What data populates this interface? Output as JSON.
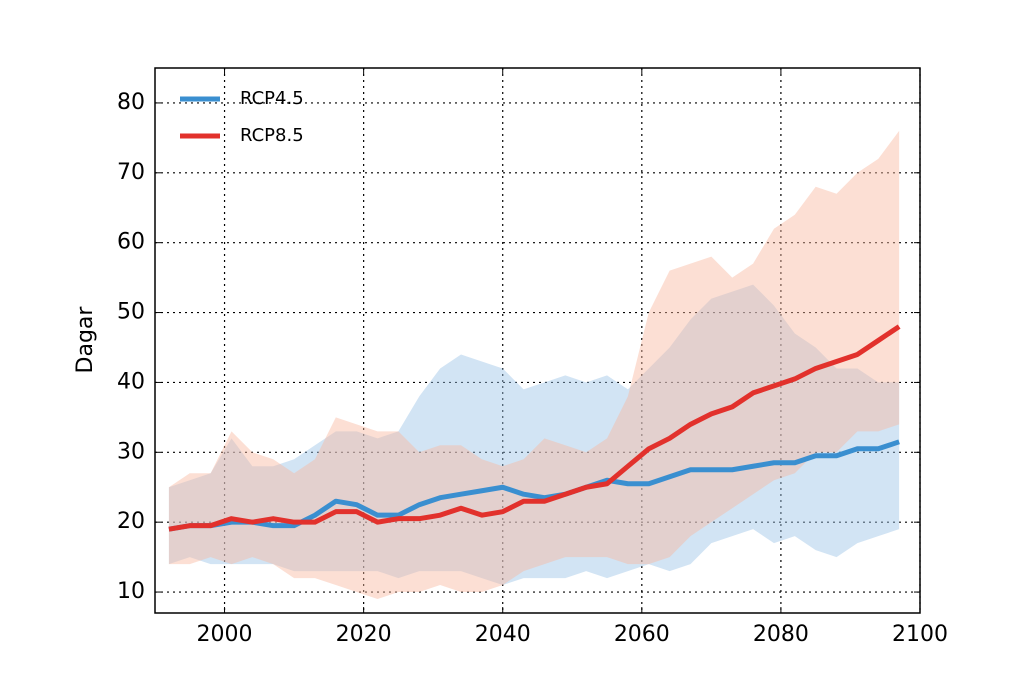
{
  "chart_data": {
    "type": "line",
    "y_label": "Dagar",
    "x": [
      1992,
      1995,
      1998,
      2001,
      2004,
      2007,
      2010,
      2013,
      2016,
      2019,
      2022,
      2025,
      2028,
      2031,
      2034,
      2037,
      2040,
      2043,
      2046,
      2049,
      2052,
      2055,
      2058,
      2061,
      2064,
      2067,
      2070,
      2073,
      2076,
      2079,
      2082,
      2085,
      2088,
      2091,
      2094,
      2097
    ],
    "series": [
      {
        "name": "RCP4.5",
        "color": "#3a8fd0",
        "band_color": "#9cc3e6",
        "values": [
          19,
          19.5,
          19.5,
          20,
          20,
          19.5,
          19.5,
          21,
          23,
          22.5,
          21,
          21,
          22.5,
          23.5,
          24,
          24.5,
          25,
          24,
          23.5,
          24,
          25,
          26,
          25.5,
          25.5,
          26.5,
          27.5,
          27.5,
          27.5,
          28,
          28.5,
          28.5,
          29.5,
          29.5,
          30.5,
          30.5,
          31.5
        ],
        "upper": [
          25,
          26,
          27,
          32,
          28,
          28,
          29,
          31,
          33,
          33,
          32,
          33,
          38,
          42,
          44,
          43,
          42,
          39,
          40,
          41,
          40,
          41,
          39,
          42,
          45,
          49,
          52,
          53,
          54,
          51,
          47,
          45,
          42,
          42,
          40,
          40
        ],
        "lower": [
          14,
          15,
          14,
          14,
          14,
          14,
          13,
          13,
          13,
          13,
          13,
          12,
          13,
          13,
          13,
          12,
          11,
          12,
          12,
          12,
          13,
          12,
          13,
          14,
          13,
          14,
          17,
          18,
          19,
          17,
          18,
          16,
          15,
          17,
          18,
          19
        ]
      },
      {
        "name": "RCP8.5",
        "color": "#e2312c",
        "band_color": "#f9b9a0",
        "values": [
          19,
          19.5,
          19.5,
          20.5,
          20,
          20.5,
          20,
          20,
          21.5,
          21.5,
          20,
          20.5,
          20.5,
          21,
          22,
          21,
          21.5,
          23,
          23,
          24,
          25,
          25.5,
          28,
          30.5,
          32,
          34,
          35.5,
          36.5,
          38.5,
          39.5,
          40.5,
          42,
          43,
          44,
          46,
          48
        ],
        "upper": [
          25,
          27,
          27,
          33,
          30,
          29,
          27,
          29,
          35,
          34,
          33,
          33,
          30,
          31,
          31,
          29,
          28,
          29,
          32,
          31,
          30,
          32,
          38,
          50,
          56,
          57,
          58,
          55,
          57,
          62,
          64,
          68,
          67,
          70,
          72,
          76
        ],
        "lower": [
          14,
          14,
          15,
          14,
          15,
          14,
          12,
          12,
          11,
          10,
          9,
          10,
          10,
          11,
          10,
          10,
          11,
          13,
          14,
          15,
          15,
          15,
          14,
          14,
          15,
          18,
          20,
          22,
          24,
          26,
          27,
          30,
          30,
          33,
          33,
          34
        ]
      }
    ],
    "xlim": [
      1990,
      2100
    ],
    "xticks": [
      2000,
      2020,
      2040,
      2060,
      2080,
      2100
    ],
    "ylim": [
      7,
      85
    ],
    "yticks": [
      10,
      20,
      30,
      40,
      50,
      60,
      70,
      80
    ],
    "grid": true,
    "legend": "upper left"
  }
}
